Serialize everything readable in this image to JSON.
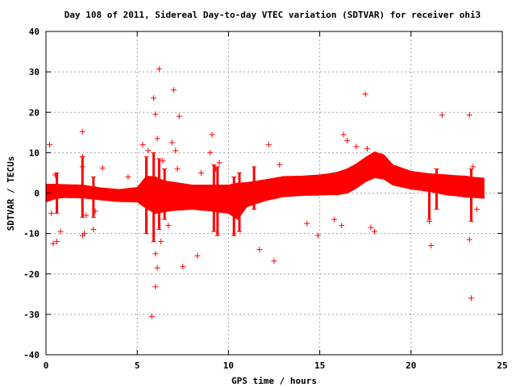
{
  "chart_data": {
    "type": "scatter",
    "title": "Day 108 of 2011, Sidereal Day-to-day VTEC variation (SDTVAR) for receiver ohi3",
    "xlabel": "GPS time / hours",
    "ylabel": "SDTVAR / TECUs",
    "xlim": [
      0,
      25
    ],
    "ylim": [
      -40,
      40
    ],
    "x_ticks": [
      0,
      5,
      10,
      15,
      20,
      25
    ],
    "y_ticks": [
      -40,
      -30,
      -20,
      -10,
      0,
      10,
      20,
      30,
      40
    ],
    "x_tick_labels": [
      "0",
      "5",
      "10",
      "15",
      "20",
      "25"
    ],
    "y_tick_labels": [
      "-40",
      "-30",
      "-20",
      "-10",
      "0",
      "10",
      "20",
      "30",
      "40"
    ],
    "grid": true,
    "legend": "none",
    "marker": "plus",
    "color": "#ff0000",
    "band_trend": {
      "x": [
        0,
        0.5,
        1,
        2,
        3,
        4,
        5,
        5.5,
        6,
        6.5,
        7,
        8,
        9,
        10,
        10.5,
        11,
        12,
        13,
        14,
        15,
        15.5,
        16,
        16.5,
        17,
        17.5,
        18,
        18.5,
        19,
        20,
        21,
        22,
        22.5,
        23,
        23.5,
        24
      ],
      "center": [
        0,
        0.4,
        0.5,
        0.4,
        -0.2,
        -0.6,
        -0.4,
        0.2,
        -0.5,
        -0.8,
        -0.8,
        -1.0,
        -1.2,
        -1.5,
        -2.0,
        -0.4,
        0.7,
        1.6,
        1.8,
        2.0,
        2.2,
        2.4,
        3.0,
        4.2,
        5.8,
        7.0,
        6.5,
        4.5,
        3.2,
        2.6,
        2.0,
        1.8,
        1.6,
        1.4,
        1.2
      ],
      "half_width": [
        2.2,
        1.8,
        1.6,
        1.6,
        1.5,
        1.5,
        1.8,
        4.0,
        4.5,
        3.8,
        3.5,
        3.0,
        3.2,
        3.5,
        4.5,
        3.0,
        2.6,
        2.5,
        2.4,
        2.5,
        2.6,
        2.8,
        3.0,
        3.0,
        3.0,
        3.2,
        3.0,
        2.5,
        2.2,
        2.2,
        2.5,
        2.5,
        2.6,
        2.5,
        2.5
      ]
    },
    "outliers": [
      {
        "x": 0.2,
        "y": 12.0
      },
      {
        "x": 0.4,
        "y": -12.5
      },
      {
        "x": 0.6,
        "y": -12.0
      },
      {
        "x": 0.8,
        "y": -9.5
      },
      {
        "x": 0.3,
        "y": -5.0
      },
      {
        "x": 0.5,
        "y": 4.5
      },
      {
        "x": 2.0,
        "y": 15.2
      },
      {
        "x": 2.0,
        "y": 9.0
      },
      {
        "x": 2.0,
        "y": 6.5
      },
      {
        "x": 2.0,
        "y": -10.5
      },
      {
        "x": 2.1,
        "y": -10.0
      },
      {
        "x": 2.2,
        "y": -5.5
      },
      {
        "x": 2.6,
        "y": -9.0
      },
      {
        "x": 2.7,
        "y": -4.5
      },
      {
        "x": 3.1,
        "y": 6.2
      },
      {
        "x": 4.5,
        "y": 4.0
      },
      {
        "x": 5.3,
        "y": 12.0
      },
      {
        "x": 5.6,
        "y": 10.5
      },
      {
        "x": 5.8,
        "y": -30.5
      },
      {
        "x": 5.9,
        "y": 23.5
      },
      {
        "x": 6.0,
        "y": 19.5
      },
      {
        "x": 6.0,
        "y": -23.2
      },
      {
        "x": 6.0,
        "y": -15.0
      },
      {
        "x": 6.1,
        "y": -18.5
      },
      {
        "x": 6.1,
        "y": 13.5
      },
      {
        "x": 6.2,
        "y": 30.7
      },
      {
        "x": 6.3,
        "y": -12.0
      },
      {
        "x": 6.4,
        "y": 8.0
      },
      {
        "x": 6.7,
        "y": -8.0
      },
      {
        "x": 6.9,
        "y": 12.5
      },
      {
        "x": 7.0,
        "y": 25.5
      },
      {
        "x": 7.1,
        "y": 10.5
      },
      {
        "x": 7.2,
        "y": 6.0
      },
      {
        "x": 7.3,
        "y": 19.0
      },
      {
        "x": 7.5,
        "y": -18.2
      },
      {
        "x": 8.3,
        "y": -15.5
      },
      {
        "x": 8.5,
        "y": 5.0
      },
      {
        "x": 9.0,
        "y": 10.0
      },
      {
        "x": 9.1,
        "y": 14.5
      },
      {
        "x": 9.3,
        "y": 6.0
      },
      {
        "x": 9.5,
        "y": 7.5
      },
      {
        "x": 11.7,
        "y": -14.0
      },
      {
        "x": 12.2,
        "y": 12.0
      },
      {
        "x": 12.5,
        "y": -16.8
      },
      {
        "x": 12.8,
        "y": 7.0
      },
      {
        "x": 14.3,
        "y": -7.5
      },
      {
        "x": 14.9,
        "y": -10.5
      },
      {
        "x": 15.8,
        "y": -6.5
      },
      {
        "x": 16.2,
        "y": -8.0
      },
      {
        "x": 16.3,
        "y": 14.5
      },
      {
        "x": 16.5,
        "y": 13.0
      },
      {
        "x": 17.0,
        "y": 11.5
      },
      {
        "x": 17.5,
        "y": 24.5
      },
      {
        "x": 17.6,
        "y": 11.0
      },
      {
        "x": 17.8,
        "y": -8.5
      },
      {
        "x": 18.0,
        "y": -9.5
      },
      {
        "x": 21.1,
        "y": -13.0
      },
      {
        "x": 21.7,
        "y": 19.3
      },
      {
        "x": 23.2,
        "y": 19.3
      },
      {
        "x": 23.2,
        "y": -11.5
      },
      {
        "x": 23.3,
        "y": -26.0
      },
      {
        "x": 23.4,
        "y": 6.5
      },
      {
        "x": 21.0,
        "y": -7.0
      },
      {
        "x": 22.0,
        "y": 3.5
      },
      {
        "x": 23.6,
        "y": -4.0
      }
    ],
    "spike_columns": [
      {
        "x": 0.6,
        "ymin": -5.0,
        "ymax": 5.0
      },
      {
        "x": 2.0,
        "ymin": -6.0,
        "ymax": 9.0
      },
      {
        "x": 2.6,
        "ymin": -6.0,
        "ymax": 4.0
      },
      {
        "x": 5.5,
        "ymin": -10.0,
        "ymax": 9.0
      },
      {
        "x": 5.9,
        "ymin": -12.0,
        "ymax": 10.0
      },
      {
        "x": 6.2,
        "ymin": -9.0,
        "ymax": 8.5
      },
      {
        "x": 6.5,
        "ymin": -6.5,
        "ymax": 6.0
      },
      {
        "x": 9.2,
        "ymin": -9.5,
        "ymax": 7.0
      },
      {
        "x": 9.4,
        "ymin": -10.5,
        "ymax": 6.5
      },
      {
        "x": 10.3,
        "ymin": -10.5,
        "ymax": 4.0
      },
      {
        "x": 10.6,
        "ymin": -9.5,
        "ymax": 5.0
      },
      {
        "x": 11.4,
        "ymin": -4.0,
        "ymax": 6.5
      },
      {
        "x": 21.0,
        "ymin": -6.5,
        "ymax": 4.0
      },
      {
        "x": 21.4,
        "ymin": -4.0,
        "ymax": 6.0
      },
      {
        "x": 23.3,
        "ymin": -7.0,
        "ymax": 6.0
      }
    ]
  }
}
